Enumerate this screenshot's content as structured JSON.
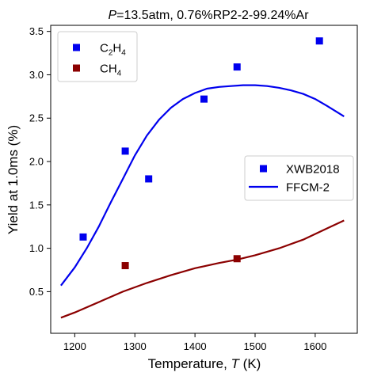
{
  "chart_data": {
    "type": "scatter",
    "title": {
      "italic": "P",
      "rest": "=13.5atm, 0.76%RP2-2-99.24%Ar"
    },
    "xlabel": {
      "text": "Temperature, ",
      "italic": "T",
      "unit": " (K)"
    },
    "ylabel": "Yield at 1.0ms (%)",
    "xlim": [
      1160,
      1670
    ],
    "ylim": [
      0.02,
      3.57
    ],
    "xticks": [
      1200,
      1300,
      1400,
      1500,
      1600
    ],
    "yticks": [
      0.5,
      1.0,
      1.5,
      2.0,
      2.5,
      3.0,
      3.5
    ],
    "ytick_labels": [
      "0.5",
      "1.0",
      "1.5",
      "2.0",
      "2.5",
      "3.0",
      "3.5"
    ],
    "grid": false,
    "series": [
      {
        "name": "C2H4",
        "kind": "scatter",
        "marker": "square",
        "color": "#0000ee",
        "points": [
          [
            1214,
            1.13
          ],
          [
            1284,
            2.12
          ],
          [
            1323,
            1.8
          ],
          [
            1415,
            2.72
          ],
          [
            1470,
            3.09
          ],
          [
            1607,
            3.39
          ]
        ]
      },
      {
        "name": "CH4",
        "kind": "scatter",
        "marker": "square",
        "color": "#8b0000",
        "points": [
          [
            1284,
            0.8
          ],
          [
            1470,
            0.88
          ]
        ]
      },
      {
        "name": "C2H4 FFCM-2",
        "kind": "line",
        "color": "#0000ee",
        "points": [
          [
            1177,
            0.57
          ],
          [
            1200,
            0.78
          ],
          [
            1220,
            1.0
          ],
          [
            1240,
            1.25
          ],
          [
            1260,
            1.53
          ],
          [
            1280,
            1.8
          ],
          [
            1300,
            2.07
          ],
          [
            1320,
            2.3
          ],
          [
            1340,
            2.48
          ],
          [
            1360,
            2.62
          ],
          [
            1380,
            2.72
          ],
          [
            1400,
            2.79
          ],
          [
            1420,
            2.84
          ],
          [
            1440,
            2.86
          ],
          [
            1460,
            2.87
          ],
          [
            1480,
            2.88
          ],
          [
            1500,
            2.88
          ],
          [
            1520,
            2.87
          ],
          [
            1540,
            2.85
          ],
          [
            1560,
            2.82
          ],
          [
            1580,
            2.78
          ],
          [
            1600,
            2.72
          ],
          [
            1620,
            2.64
          ],
          [
            1648,
            2.52
          ]
        ]
      },
      {
        "name": "CH4 FFCM-2",
        "kind": "line",
        "color": "#8b0000",
        "points": [
          [
            1177,
            0.2
          ],
          [
            1200,
            0.26
          ],
          [
            1240,
            0.38
          ],
          [
            1280,
            0.5
          ],
          [
            1320,
            0.6
          ],
          [
            1360,
            0.69
          ],
          [
            1400,
            0.77
          ],
          [
            1440,
            0.83
          ],
          [
            1470,
            0.87
          ],
          [
            1500,
            0.92
          ],
          [
            1540,
            1.0
          ],
          [
            1580,
            1.1
          ],
          [
            1620,
            1.23
          ],
          [
            1648,
            1.32
          ]
        ]
      }
    ],
    "legend_species": {
      "placement": "upper-left",
      "entries": [
        {
          "base": "C",
          "sub1": "2",
          "mid": "H",
          "sub2": "4",
          "color": "#0000ee"
        },
        {
          "base": "CH",
          "sub1": "4",
          "mid": "",
          "sub2": "",
          "color": "#8b0000"
        }
      ]
    },
    "legend_source": {
      "placement": "right",
      "entries": [
        {
          "label": "XWB2018",
          "kind": "marker",
          "color": "#0000ee"
        },
        {
          "label": "FFCM-2",
          "kind": "line",
          "color": "#0000ee"
        }
      ]
    }
  }
}
